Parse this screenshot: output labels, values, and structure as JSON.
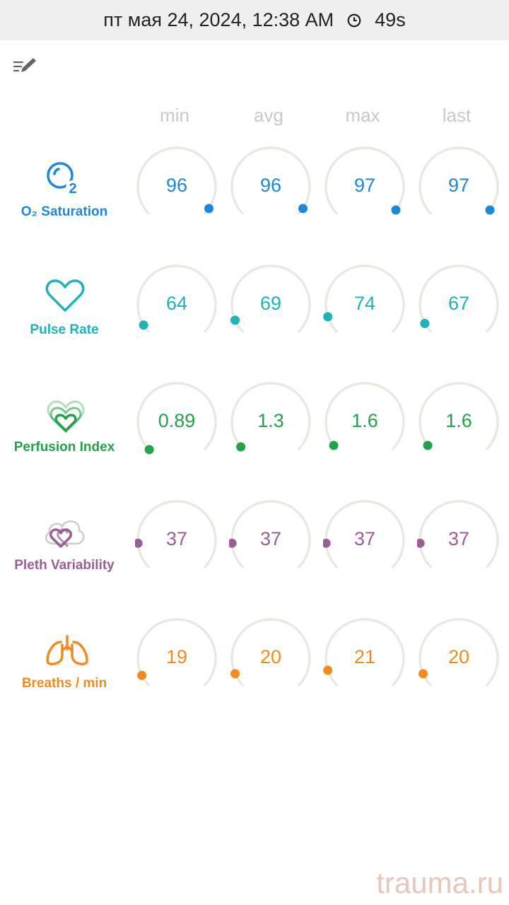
{
  "status_bar": {
    "datetime": "пт мая 24, 2024, 12:38 AM",
    "duration": "49s",
    "clock_icon": "clock-icon"
  },
  "toolbar": {
    "edit_icon": "edit-list-icon"
  },
  "columns": [
    "min",
    "avg",
    "max",
    "last"
  ],
  "metrics": [
    {
      "id": "o2",
      "label": "O₂ Saturation",
      "icon": "o2-bubble-icon",
      "color": "#1e88d8",
      "values": [
        "96",
        "96",
        "97",
        "97"
      ],
      "levels": [
        0.96,
        0.96,
        0.97,
        0.97
      ]
    },
    {
      "id": "pulse",
      "label": "Pulse Rate",
      "icon": "heart-outline-icon",
      "color": "#1db3b8",
      "values": [
        "64",
        "69",
        "74",
        "67"
      ],
      "levels": [
        0.05,
        0.08,
        0.1,
        0.06
      ]
    },
    {
      "id": "perfusion",
      "label": "Perfusion Index",
      "icon": "layered-hearts-icon",
      "color": "#23a24a",
      "values": [
        "0.89",
        "1.3",
        "1.6",
        "1.6"
      ],
      "levels": [
        0.0,
        0.02,
        0.03,
        0.03
      ]
    },
    {
      "id": "pleth",
      "label": "Pleth Variability",
      "icon": "hearts-cloud-icon",
      "color": "#9b5e93",
      "values": [
        "37",
        "37",
        "37",
        "37"
      ],
      "levels": [
        0.15,
        0.15,
        0.15,
        0.15
      ]
    },
    {
      "id": "breaths",
      "label": "Breaths / min",
      "icon": "lungs-icon",
      "color": "#f08c1e",
      "values": [
        "19",
        "20",
        "21",
        "20"
      ],
      "levels": [
        0.07,
        0.08,
        0.1,
        0.08
      ]
    }
  ],
  "watermark": "trauma.ru"
}
